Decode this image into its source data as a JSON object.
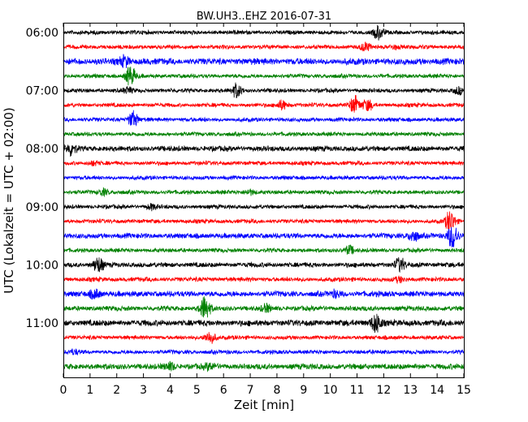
{
  "chart_data": {
    "type": "line",
    "title": "BW.UH3..EHZ 2016-07-31",
    "xlabel": "Zeit  [min]",
    "ylabel": "UTC (Lokalzeit = UTC + 02:00)",
    "xlim": [
      0,
      15
    ],
    "x_ticks": [
      "0",
      "1",
      "2",
      "3",
      "4",
      "5",
      "6",
      "7",
      "8",
      "9",
      "10",
      "11",
      "12",
      "13",
      "14",
      "15"
    ],
    "y_tick_labels": [
      "06:00",
      "07:00",
      "08:00",
      "09:00",
      "10:00",
      "11:00"
    ],
    "trace_interval_min": 15,
    "trace_colors": [
      "#000000",
      "#ff0000",
      "#0000ff",
      "#008000"
    ],
    "traces": [
      {
        "start": "06:00",
        "amplitude": 1.0,
        "events": [
          [
            11.8,
            2.0
          ]
        ]
      },
      {
        "start": "06:15",
        "amplitude": 1.0,
        "events": [
          [
            11.3,
            1.6
          ],
          [
            12.4,
            1.4
          ]
        ]
      },
      {
        "start": "06:30",
        "amplitude": 1.6,
        "events": [
          [
            2.3,
            1.5
          ]
        ]
      },
      {
        "start": "06:45",
        "amplitude": 1.0,
        "events": [
          [
            2.5,
            2.6
          ]
        ]
      },
      {
        "start": "07:00",
        "amplitude": 1.0,
        "events": [
          [
            2.4,
            1.4
          ],
          [
            6.5,
            2.0
          ],
          [
            14.8,
            1.6
          ]
        ]
      },
      {
        "start": "07:15",
        "amplitude": 1.0,
        "events": [
          [
            8.2,
            1.8
          ],
          [
            10.9,
            2.2
          ],
          [
            11.4,
            1.8
          ]
        ]
      },
      {
        "start": "07:30",
        "amplitude": 1.0,
        "events": [
          [
            2.6,
            2.4
          ]
        ]
      },
      {
        "start": "07:45",
        "amplitude": 1.0,
        "events": []
      },
      {
        "start": "08:00",
        "amplitude": 1.3,
        "events": [
          [
            0.3,
            1.6
          ]
        ]
      },
      {
        "start": "08:15",
        "amplitude": 1.0,
        "events": [
          [
            1.1,
            1.3
          ]
        ]
      },
      {
        "start": "08:30",
        "amplitude": 1.0,
        "events": []
      },
      {
        "start": "08:45",
        "amplitude": 1.0,
        "events": [
          [
            1.5,
            1.6
          ],
          [
            7.0,
            1.5
          ]
        ]
      },
      {
        "start": "09:00",
        "amplitude": 1.0,
        "events": [
          [
            3.3,
            1.4
          ]
        ]
      },
      {
        "start": "09:15",
        "amplitude": 1.0,
        "events": [
          [
            14.5,
            2.6
          ]
        ]
      },
      {
        "start": "09:30",
        "amplitude": 1.3,
        "events": [
          [
            13.1,
            1.8
          ],
          [
            14.6,
            2.8
          ]
        ]
      },
      {
        "start": "09:45",
        "amplitude": 1.0,
        "events": [
          [
            10.7,
            1.8
          ]
        ]
      },
      {
        "start": "10:00",
        "amplitude": 1.2,
        "events": [
          [
            1.3,
            2.0
          ],
          [
            12.6,
            1.8
          ]
        ]
      },
      {
        "start": "10:15",
        "amplitude": 1.1,
        "events": [
          [
            12.6,
            1.3
          ]
        ]
      },
      {
        "start": "10:30",
        "amplitude": 1.4,
        "events": [
          [
            1.2,
            1.5
          ],
          [
            10.2,
            1.3
          ]
        ]
      },
      {
        "start": "10:45",
        "amplitude": 1.2,
        "events": [
          [
            5.3,
            2.6
          ],
          [
            7.6,
            1.4
          ]
        ]
      },
      {
        "start": "11:00",
        "amplitude": 1.5,
        "events": [
          [
            11.7,
            2.2
          ]
        ]
      },
      {
        "start": "11:15",
        "amplitude": 1.0,
        "events": [
          [
            5.5,
            2.2
          ]
        ]
      },
      {
        "start": "11:30",
        "amplitude": 1.0,
        "events": [
          [
            0.4,
            1.3
          ]
        ]
      },
      {
        "start": "11:45",
        "amplitude": 1.4,
        "events": [
          [
            4.0,
            1.4
          ],
          [
            5.5,
            1.3
          ]
        ]
      }
    ]
  }
}
